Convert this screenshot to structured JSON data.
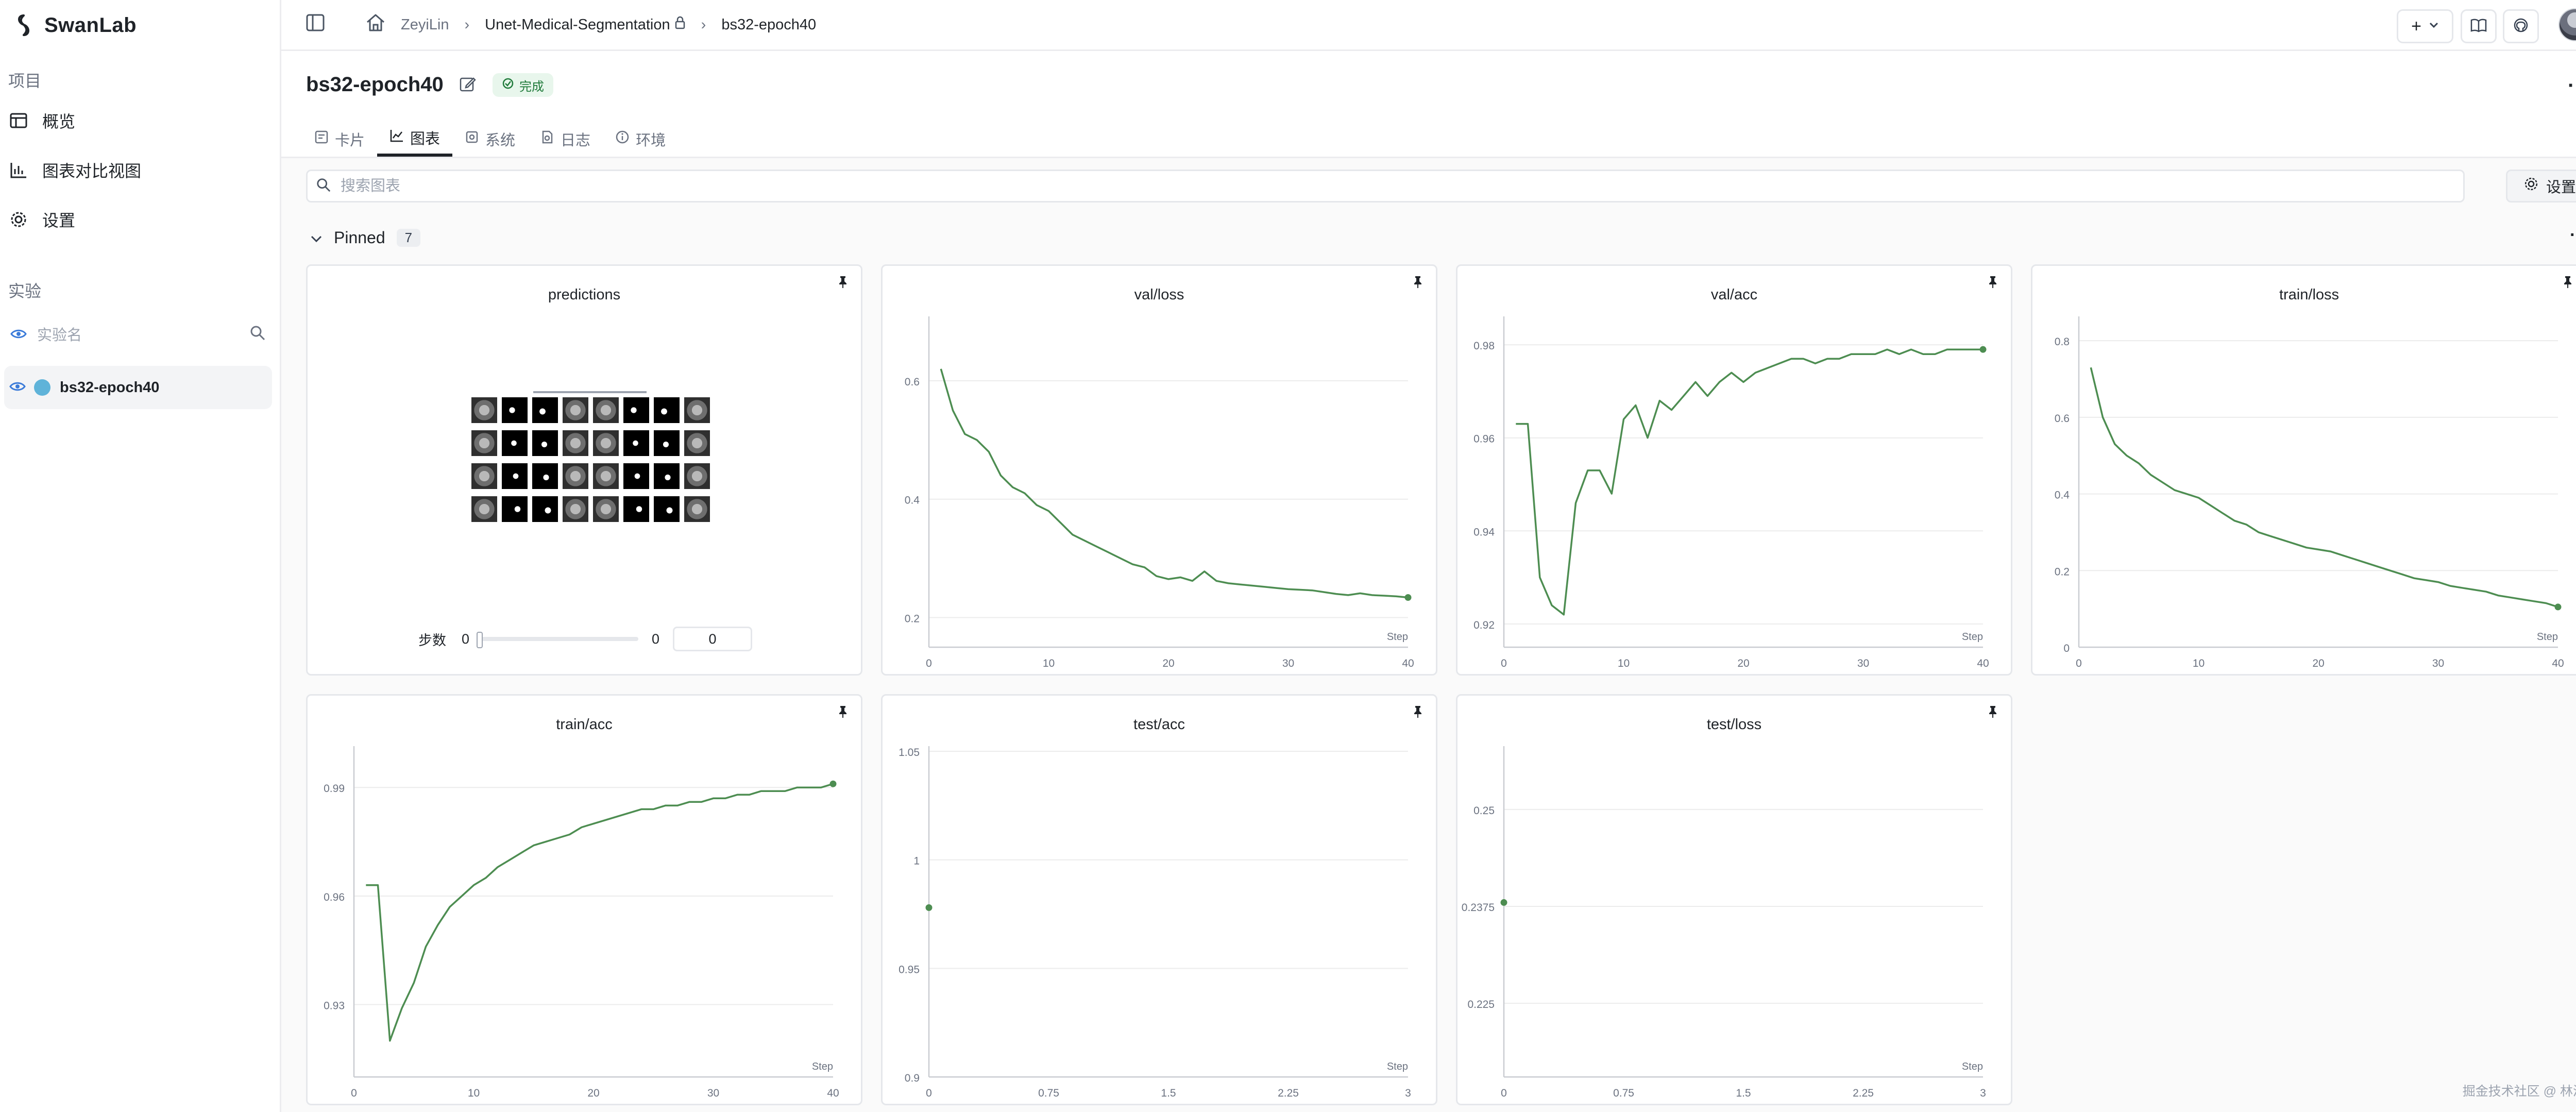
{
  "app": {
    "name": "SwanLab"
  },
  "sidebar": {
    "project_label": "项目",
    "items": [
      {
        "label": "概览"
      },
      {
        "label": "图表对比视图"
      },
      {
        "label": "设置"
      }
    ],
    "experiments_label": "实验",
    "exp_search_placeholder": "实验名",
    "experiment": {
      "name": "bs32-epoch40",
      "color": "#5fb3d9"
    }
  },
  "breadcrumb": {
    "user": "ZeyiLin",
    "project": "Unet-Medical-Segmentation",
    "run": "bs32-epoch40"
  },
  "header": {
    "title": "bs32-epoch40",
    "status": "完成"
  },
  "tabs": [
    {
      "label": "卡片"
    },
    {
      "label": "图表"
    },
    {
      "label": "系统"
    },
    {
      "label": "日志"
    },
    {
      "label": "环境"
    }
  ],
  "search": {
    "placeholder": "搜索图表"
  },
  "settings_label": "设置",
  "pinned": {
    "label": "Pinned",
    "count": "7"
  },
  "predictions": {
    "title": "predictions",
    "step_label": "步数",
    "slider_min": "0",
    "slider_max": "0",
    "step_value": "0",
    "slider_value": 0
  },
  "watermark": "掘金技术社区 @ 林泽毅",
  "colors": {
    "line": "#4d8d51",
    "accent": "#1f7a3a"
  },
  "chart_data": [
    {
      "type": "line",
      "title": "val/loss",
      "xlabel": "Step",
      "xlim": [
        0,
        40
      ],
      "ylim": [
        0.15,
        0.7
      ],
      "xticks": [
        0,
        10,
        20,
        30,
        40
      ],
      "xtick_labels": [
        "0",
        "10",
        "20",
        "30",
        "40"
      ],
      "yticks": [
        0.2,
        0.4,
        0.6
      ],
      "ytick_labels": [
        "0.2",
        "0.4",
        "0.6"
      ],
      "x": [
        1,
        2,
        3,
        4,
        5,
        6,
        7,
        8,
        9,
        10,
        11,
        12,
        13,
        14,
        15,
        16,
        17,
        18,
        19,
        20,
        21,
        22,
        23,
        24,
        25,
        26,
        27,
        28,
        29,
        30,
        31,
        32,
        33,
        34,
        35,
        36,
        37,
        38,
        39,
        40
      ],
      "y": [
        0.62,
        0.55,
        0.51,
        0.5,
        0.48,
        0.44,
        0.42,
        0.41,
        0.39,
        0.38,
        0.36,
        0.34,
        0.33,
        0.32,
        0.31,
        0.3,
        0.29,
        0.285,
        0.27,
        0.265,
        0.268,
        0.262,
        0.278,
        0.262,
        0.258,
        0.256,
        0.254,
        0.252,
        0.25,
        0.248,
        0.247,
        0.246,
        0.243,
        0.24,
        0.238,
        0.241,
        0.238,
        0.237,
        0.236,
        0.234
      ]
    },
    {
      "type": "line",
      "title": "val/acc",
      "xlabel": "Step",
      "xlim": [
        0,
        40
      ],
      "ylim": [
        0.915,
        0.985
      ],
      "xticks": [
        0,
        10,
        20,
        30,
        40
      ],
      "xtick_labels": [
        "0",
        "10",
        "20",
        "30",
        "40"
      ],
      "yticks": [
        0.92,
        0.94,
        0.96,
        0.98
      ],
      "ytick_labels": [
        "0.92",
        "0.94",
        "0.96",
        "0.98"
      ],
      "x": [
        1,
        2,
        3,
        4,
        5,
        6,
        7,
        8,
        9,
        10,
        11,
        12,
        13,
        14,
        15,
        16,
        17,
        18,
        19,
        20,
        21,
        22,
        23,
        24,
        25,
        26,
        27,
        28,
        29,
        30,
        31,
        32,
        33,
        34,
        35,
        36,
        37,
        38,
        39,
        40
      ],
      "y": [
        0.963,
        0.963,
        0.93,
        0.924,
        0.922,
        0.946,
        0.953,
        0.953,
        0.948,
        0.964,
        0.967,
        0.96,
        0.968,
        0.966,
        0.969,
        0.972,
        0.969,
        0.972,
        0.974,
        0.972,
        0.974,
        0.975,
        0.976,
        0.977,
        0.977,
        0.976,
        0.977,
        0.977,
        0.978,
        0.978,
        0.978,
        0.979,
        0.978,
        0.979,
        0.978,
        0.978,
        0.979,
        0.979,
        0.979,
        0.979
      ]
    },
    {
      "type": "line",
      "title": "train/loss",
      "xlabel": "Step",
      "xlim": [
        0,
        40
      ],
      "ylim": [
        0,
        0.85
      ],
      "xticks": [
        0,
        10,
        20,
        30,
        40
      ],
      "xtick_labels": [
        "0",
        "10",
        "20",
        "30",
        "40"
      ],
      "yticks": [
        0,
        0.2,
        0.4,
        0.6,
        0.8
      ],
      "ytick_labels": [
        "0",
        "0.2",
        "0.4",
        "0.6",
        "0.8"
      ],
      "x": [
        1,
        2,
        3,
        4,
        5,
        6,
        7,
        8,
        9,
        10,
        11,
        12,
        13,
        14,
        15,
        16,
        17,
        18,
        19,
        20,
        21,
        22,
        23,
        24,
        25,
        26,
        27,
        28,
        29,
        30,
        31,
        32,
        33,
        34,
        35,
        36,
        37,
        38,
        39,
        40
      ],
      "y": [
        0.73,
        0.6,
        0.53,
        0.5,
        0.48,
        0.45,
        0.43,
        0.41,
        0.4,
        0.39,
        0.37,
        0.35,
        0.33,
        0.32,
        0.3,
        0.29,
        0.28,
        0.27,
        0.26,
        0.255,
        0.25,
        0.24,
        0.23,
        0.22,
        0.21,
        0.2,
        0.19,
        0.18,
        0.175,
        0.17,
        0.16,
        0.155,
        0.15,
        0.145,
        0.135,
        0.13,
        0.125,
        0.12,
        0.115,
        0.105
      ]
    },
    {
      "type": "line",
      "title": "train/acc",
      "xlabel": "Step",
      "xlim": [
        0,
        40
      ],
      "ylim": [
        0.91,
        1.0
      ],
      "xticks": [
        0,
        10,
        20,
        30,
        40
      ],
      "xtick_labels": [
        "0",
        "10",
        "20",
        "30",
        "40"
      ],
      "yticks": [
        0.93,
        0.96,
        0.99
      ],
      "ytick_labels": [
        "0.93",
        "0.96",
        "0.99"
      ],
      "x": [
        1,
        2,
        3,
        4,
        5,
        6,
        7,
        8,
        9,
        10,
        11,
        12,
        13,
        14,
        15,
        16,
        17,
        18,
        19,
        20,
        21,
        22,
        23,
        24,
        25,
        26,
        27,
        28,
        29,
        30,
        31,
        32,
        33,
        34,
        35,
        36,
        37,
        38,
        39,
        40
      ],
      "y": [
        0.963,
        0.963,
        0.92,
        0.929,
        0.936,
        0.946,
        0.952,
        0.957,
        0.96,
        0.963,
        0.965,
        0.968,
        0.97,
        0.972,
        0.974,
        0.975,
        0.976,
        0.977,
        0.979,
        0.98,
        0.981,
        0.982,
        0.983,
        0.984,
        0.984,
        0.985,
        0.985,
        0.986,
        0.986,
        0.987,
        0.987,
        0.988,
        0.988,
        0.989,
        0.989,
        0.989,
        0.99,
        0.99,
        0.99,
        0.991
      ]
    },
    {
      "type": "scatter",
      "title": "test/acc",
      "xlabel": "Step",
      "xlim": [
        0,
        3
      ],
      "ylim": [
        0.9,
        1.05
      ],
      "xticks": [
        0,
        0.75,
        1.5,
        2.25,
        3
      ],
      "xtick_labels": [
        "0",
        "0.75",
        "1.5",
        "2.25",
        "3"
      ],
      "yticks": [
        0.9,
        0.95,
        1,
        1.05
      ],
      "ytick_labels": [
        "0.9",
        "0.95",
        "1",
        "1.05"
      ],
      "x": [
        0
      ],
      "y": [
        0.978
      ]
    },
    {
      "type": "scatter",
      "title": "test/loss",
      "xlabel": "Step",
      "xlim": [
        0,
        3
      ],
      "ylim": [
        0.2155,
        0.2575
      ],
      "xticks": [
        0,
        0.75,
        1.5,
        2.25,
        3
      ],
      "xtick_labels": [
        "0",
        "0.75",
        "1.5",
        "2.25",
        "3"
      ],
      "yticks": [
        0.225,
        0.2375,
        0.25
      ],
      "ytick_labels": [
        "0.225",
        "0.2375",
        "0.25"
      ],
      "x": [
        0
      ],
      "y": [
        0.238
      ]
    }
  ]
}
